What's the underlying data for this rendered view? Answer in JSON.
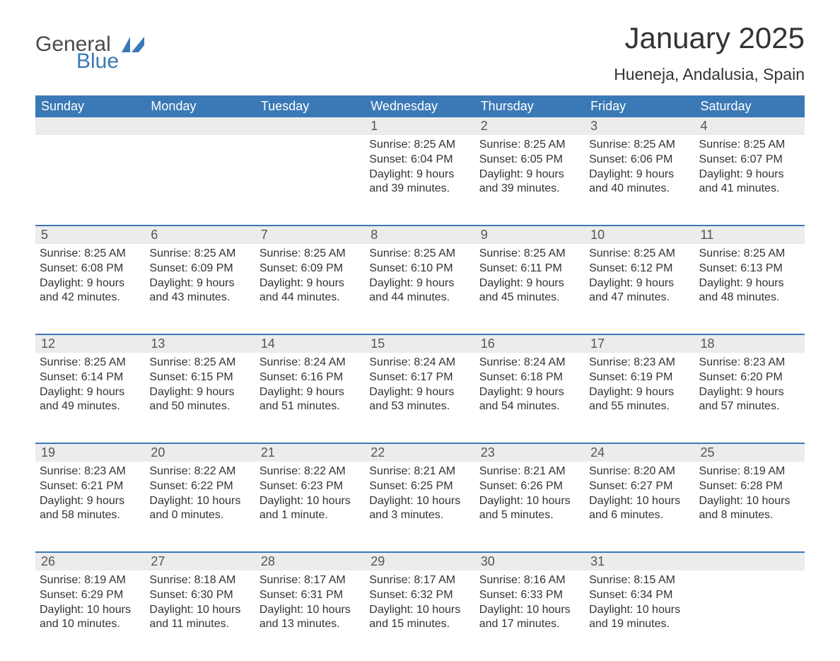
{
  "logo": {
    "word1": "General",
    "word2": "Blue",
    "icon_color": "#3b79b6"
  },
  "title": "January 2025",
  "location": "Hueneja, Andalusia, Spain",
  "colors": {
    "header_bg": "#3b79b6",
    "header_text": "#ffffff",
    "daynum_bg": "#ececec",
    "row_border": "#3b79b6",
    "body_text": "#333333",
    "daynum_text": "#555555"
  },
  "fonts": {
    "title_size": 42,
    "location_size": 23,
    "header_size": 18,
    "daynum_size": 18,
    "cell_size": 16
  },
  "weekdays": [
    "Sunday",
    "Monday",
    "Tuesday",
    "Wednesday",
    "Thursday",
    "Friday",
    "Saturday"
  ],
  "weeks": [
    [
      {
        "day": "",
        "sunrise": "",
        "sunset": "",
        "daylight1": "",
        "daylight2": ""
      },
      {
        "day": "",
        "sunrise": "",
        "sunset": "",
        "daylight1": "",
        "daylight2": ""
      },
      {
        "day": "",
        "sunrise": "",
        "sunset": "",
        "daylight1": "",
        "daylight2": ""
      },
      {
        "day": "1",
        "sunrise": "Sunrise: 8:25 AM",
        "sunset": "Sunset: 6:04 PM",
        "daylight1": "Daylight: 9 hours",
        "daylight2": "and 39 minutes."
      },
      {
        "day": "2",
        "sunrise": "Sunrise: 8:25 AM",
        "sunset": "Sunset: 6:05 PM",
        "daylight1": "Daylight: 9 hours",
        "daylight2": "and 39 minutes."
      },
      {
        "day": "3",
        "sunrise": "Sunrise: 8:25 AM",
        "sunset": "Sunset: 6:06 PM",
        "daylight1": "Daylight: 9 hours",
        "daylight2": "and 40 minutes."
      },
      {
        "day": "4",
        "sunrise": "Sunrise: 8:25 AM",
        "sunset": "Sunset: 6:07 PM",
        "daylight1": "Daylight: 9 hours",
        "daylight2": "and 41 minutes."
      }
    ],
    [
      {
        "day": "5",
        "sunrise": "Sunrise: 8:25 AM",
        "sunset": "Sunset: 6:08 PM",
        "daylight1": "Daylight: 9 hours",
        "daylight2": "and 42 minutes."
      },
      {
        "day": "6",
        "sunrise": "Sunrise: 8:25 AM",
        "sunset": "Sunset: 6:09 PM",
        "daylight1": "Daylight: 9 hours",
        "daylight2": "and 43 minutes."
      },
      {
        "day": "7",
        "sunrise": "Sunrise: 8:25 AM",
        "sunset": "Sunset: 6:09 PM",
        "daylight1": "Daylight: 9 hours",
        "daylight2": "and 44 minutes."
      },
      {
        "day": "8",
        "sunrise": "Sunrise: 8:25 AM",
        "sunset": "Sunset: 6:10 PM",
        "daylight1": "Daylight: 9 hours",
        "daylight2": "and 44 minutes."
      },
      {
        "day": "9",
        "sunrise": "Sunrise: 8:25 AM",
        "sunset": "Sunset: 6:11 PM",
        "daylight1": "Daylight: 9 hours",
        "daylight2": "and 45 minutes."
      },
      {
        "day": "10",
        "sunrise": "Sunrise: 8:25 AM",
        "sunset": "Sunset: 6:12 PM",
        "daylight1": "Daylight: 9 hours",
        "daylight2": "and 47 minutes."
      },
      {
        "day": "11",
        "sunrise": "Sunrise: 8:25 AM",
        "sunset": "Sunset: 6:13 PM",
        "daylight1": "Daylight: 9 hours",
        "daylight2": "and 48 minutes."
      }
    ],
    [
      {
        "day": "12",
        "sunrise": "Sunrise: 8:25 AM",
        "sunset": "Sunset: 6:14 PM",
        "daylight1": "Daylight: 9 hours",
        "daylight2": "and 49 minutes."
      },
      {
        "day": "13",
        "sunrise": "Sunrise: 8:25 AM",
        "sunset": "Sunset: 6:15 PM",
        "daylight1": "Daylight: 9 hours",
        "daylight2": "and 50 minutes."
      },
      {
        "day": "14",
        "sunrise": "Sunrise: 8:24 AM",
        "sunset": "Sunset: 6:16 PM",
        "daylight1": "Daylight: 9 hours",
        "daylight2": "and 51 minutes."
      },
      {
        "day": "15",
        "sunrise": "Sunrise: 8:24 AM",
        "sunset": "Sunset: 6:17 PM",
        "daylight1": "Daylight: 9 hours",
        "daylight2": "and 53 minutes."
      },
      {
        "day": "16",
        "sunrise": "Sunrise: 8:24 AM",
        "sunset": "Sunset: 6:18 PM",
        "daylight1": "Daylight: 9 hours",
        "daylight2": "and 54 minutes."
      },
      {
        "day": "17",
        "sunrise": "Sunrise: 8:23 AM",
        "sunset": "Sunset: 6:19 PM",
        "daylight1": "Daylight: 9 hours",
        "daylight2": "and 55 minutes."
      },
      {
        "day": "18",
        "sunrise": "Sunrise: 8:23 AM",
        "sunset": "Sunset: 6:20 PM",
        "daylight1": "Daylight: 9 hours",
        "daylight2": "and 57 minutes."
      }
    ],
    [
      {
        "day": "19",
        "sunrise": "Sunrise: 8:23 AM",
        "sunset": "Sunset: 6:21 PM",
        "daylight1": "Daylight: 9 hours",
        "daylight2": "and 58 minutes."
      },
      {
        "day": "20",
        "sunrise": "Sunrise: 8:22 AM",
        "sunset": "Sunset: 6:22 PM",
        "daylight1": "Daylight: 10 hours",
        "daylight2": "and 0 minutes."
      },
      {
        "day": "21",
        "sunrise": "Sunrise: 8:22 AM",
        "sunset": "Sunset: 6:23 PM",
        "daylight1": "Daylight: 10 hours",
        "daylight2": "and 1 minute."
      },
      {
        "day": "22",
        "sunrise": "Sunrise: 8:21 AM",
        "sunset": "Sunset: 6:25 PM",
        "daylight1": "Daylight: 10 hours",
        "daylight2": "and 3 minutes."
      },
      {
        "day": "23",
        "sunrise": "Sunrise: 8:21 AM",
        "sunset": "Sunset: 6:26 PM",
        "daylight1": "Daylight: 10 hours",
        "daylight2": "and 5 minutes."
      },
      {
        "day": "24",
        "sunrise": "Sunrise: 8:20 AM",
        "sunset": "Sunset: 6:27 PM",
        "daylight1": "Daylight: 10 hours",
        "daylight2": "and 6 minutes."
      },
      {
        "day": "25",
        "sunrise": "Sunrise: 8:19 AM",
        "sunset": "Sunset: 6:28 PM",
        "daylight1": "Daylight: 10 hours",
        "daylight2": "and 8 minutes."
      }
    ],
    [
      {
        "day": "26",
        "sunrise": "Sunrise: 8:19 AM",
        "sunset": "Sunset: 6:29 PM",
        "daylight1": "Daylight: 10 hours",
        "daylight2": "and 10 minutes."
      },
      {
        "day": "27",
        "sunrise": "Sunrise: 8:18 AM",
        "sunset": "Sunset: 6:30 PM",
        "daylight1": "Daylight: 10 hours",
        "daylight2": "and 11 minutes."
      },
      {
        "day": "28",
        "sunrise": "Sunrise: 8:17 AM",
        "sunset": "Sunset: 6:31 PM",
        "daylight1": "Daylight: 10 hours",
        "daylight2": "and 13 minutes."
      },
      {
        "day": "29",
        "sunrise": "Sunrise: 8:17 AM",
        "sunset": "Sunset: 6:32 PM",
        "daylight1": "Daylight: 10 hours",
        "daylight2": "and 15 minutes."
      },
      {
        "day": "30",
        "sunrise": "Sunrise: 8:16 AM",
        "sunset": "Sunset: 6:33 PM",
        "daylight1": "Daylight: 10 hours",
        "daylight2": "and 17 minutes."
      },
      {
        "day": "31",
        "sunrise": "Sunrise: 8:15 AM",
        "sunset": "Sunset: 6:34 PM",
        "daylight1": "Daylight: 10 hours",
        "daylight2": "and 19 minutes."
      },
      {
        "day": "",
        "sunrise": "",
        "sunset": "",
        "daylight1": "",
        "daylight2": ""
      }
    ]
  ]
}
